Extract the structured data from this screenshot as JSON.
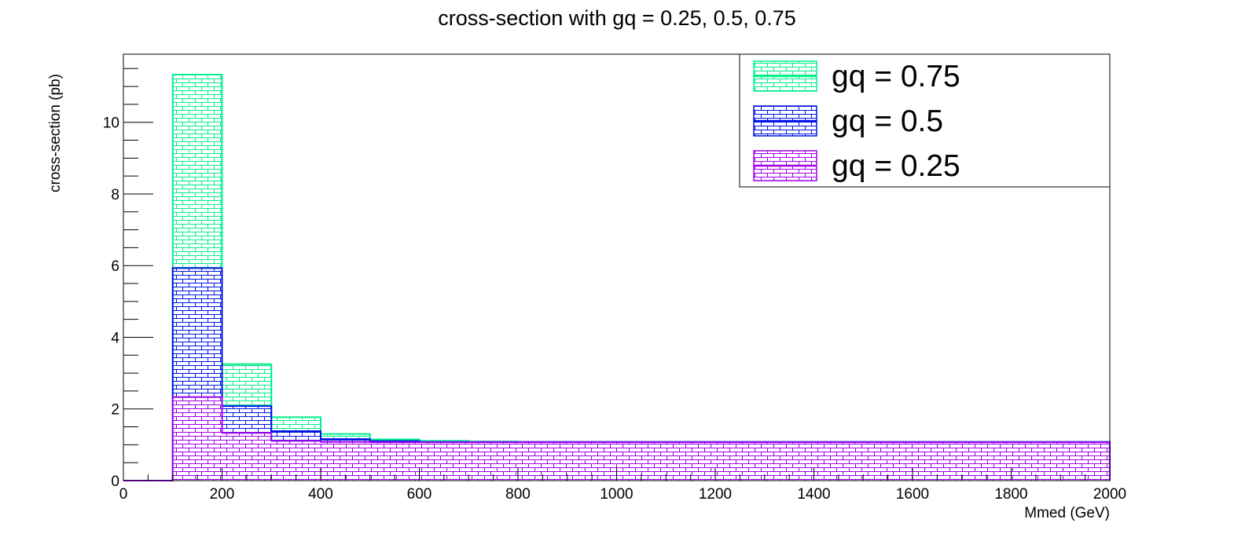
{
  "chart_data": {
    "type": "bar",
    "subtype": "stacked-histogram",
    "title": "cross-section with gq = 0.25, 0.5, 0.75",
    "xlabel": "Mmed (GeV)",
    "ylabel": "cross-section (pb)",
    "xlim": [
      0,
      2000
    ],
    "ylim": [
      0,
      11.9
    ],
    "x_ticks": [
      "0",
      "200",
      "400",
      "600",
      "800",
      "1000",
      "1200",
      "1400",
      "1600",
      "1800",
      "2000"
    ],
    "y_ticks": [
      "0",
      "2",
      "4",
      "6",
      "8",
      "10"
    ],
    "bin_edges": [
      0,
      100,
      200,
      300,
      400,
      500,
      600,
      700,
      800,
      2000
    ],
    "grid": false,
    "legend_position": "top-right",
    "series": [
      {
        "name": "gq = 0.75",
        "color": "#00f08c",
        "values": [
          0,
          11.33,
          3.25,
          1.77,
          1.3,
          1.15,
          1.11,
          1.09,
          1.08
        ]
      },
      {
        "name": "gq = 0.5",
        "color": "#0014e6",
        "values": [
          0,
          5.93,
          2.08,
          1.38,
          1.16,
          1.1,
          1.08,
          1.08,
          1.08
        ]
      },
      {
        "name": "gq = 0.25",
        "color": "#a000f0",
        "values": [
          0,
          2.33,
          1.33,
          1.11,
          1.08,
          1.07,
          1.07,
          1.07,
          1.07
        ]
      }
    ]
  }
}
